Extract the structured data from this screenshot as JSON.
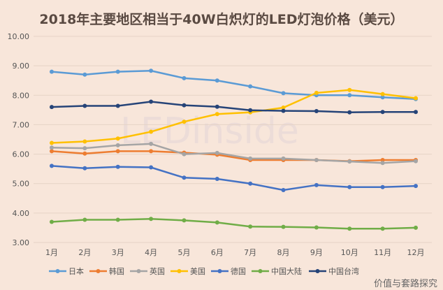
{
  "chart_data": {
    "type": "line",
    "title": "2018年主要地区相当于40W白炽灯的LED灯泡价格（美元）",
    "xlabel": "",
    "ylabel": "",
    "categories": [
      "1月",
      "2月",
      "3月",
      "4月",
      "5月",
      "6月",
      "7月",
      "8月",
      "9月",
      "10月",
      "11月",
      "12月"
    ],
    "ylim": [
      3.0,
      10.0
    ],
    "yticks": [
      "3.00",
      "4.00",
      "5.00",
      "6.00",
      "7.00",
      "8.00",
      "9.00",
      "10.00"
    ],
    "grid": true,
    "legend_position": "bottom",
    "series": [
      {
        "name": "日本",
        "color": "#5b9bd5",
        "values": [
          8.8,
          8.7,
          8.8,
          8.83,
          8.58,
          8.5,
          8.3,
          8.07,
          8.0,
          8.0,
          7.93,
          7.87
        ]
      },
      {
        "name": "韩国",
        "color": "#ed7d31",
        "values": [
          6.1,
          6.02,
          6.1,
          6.1,
          6.05,
          5.98,
          5.8,
          5.8,
          5.8,
          5.76,
          5.8,
          5.8
        ]
      },
      {
        "name": "英国",
        "color": "#a5a5a5",
        "values": [
          6.22,
          6.2,
          6.3,
          6.35,
          6.0,
          6.04,
          5.85,
          5.85,
          5.8,
          5.75,
          5.7,
          5.76
        ]
      },
      {
        "name": "美国",
        "color": "#ffc000",
        "values": [
          6.38,
          6.43,
          6.53,
          6.76,
          7.1,
          7.36,
          7.42,
          7.58,
          8.08,
          8.18,
          8.04,
          7.9
        ]
      },
      {
        "name": "德国",
        "color": "#4472c4",
        "values": [
          5.6,
          5.52,
          5.57,
          5.55,
          5.2,
          5.16,
          5.0,
          4.78,
          4.95,
          4.88,
          4.88,
          4.92
        ]
      },
      {
        "name": "中国大陆",
        "color": "#70ad47",
        "values": [
          3.7,
          3.77,
          3.77,
          3.8,
          3.75,
          3.68,
          3.54,
          3.53,
          3.51,
          3.47,
          3.47,
          3.5
        ]
      },
      {
        "name": "中国台湾",
        "color": "#264478",
        "values": [
          7.6,
          7.64,
          7.64,
          7.78,
          7.66,
          7.61,
          7.49,
          7.47,
          7.46,
          7.42,
          7.43,
          7.43
        ]
      }
    ]
  },
  "watermarks": {
    "center": "LEDinside",
    "corner": "价值与套路探究"
  }
}
